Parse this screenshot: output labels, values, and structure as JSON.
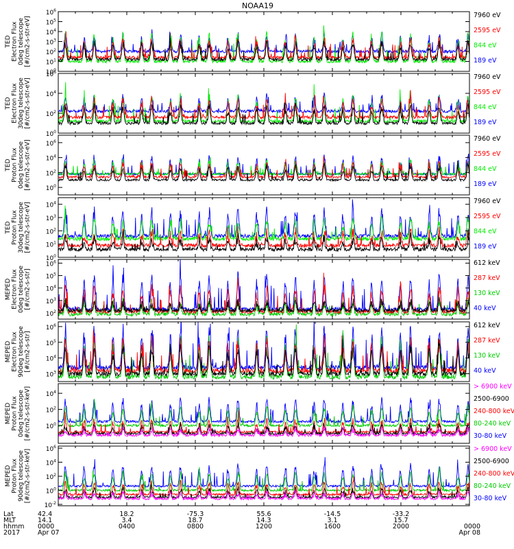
{
  "chart_data": {
    "type": "line",
    "title": "NOAA19",
    "x_tick_labels": {
      "row_labels": [
        "Lat",
        "MLT",
        "hhmm",
        "2017"
      ],
      "ticks": [
        {
          "t": 0,
          "lat": "42.4",
          "mlt": "14.1",
          "hhmm": "0000",
          "date": "Apr 07"
        },
        {
          "t": 4,
          "lat": "18.2",
          "mlt": "3.4",
          "hhmm": "0400",
          "date": ""
        },
        {
          "t": 8,
          "lat": "-75.3",
          "mlt": "18.7",
          "hhmm": "0800",
          "date": ""
        },
        {
          "t": 12,
          "lat": "55.6",
          "mlt": "14.3",
          "hhmm": "1200",
          "date": ""
        },
        {
          "t": 16,
          "lat": "-14.5",
          "mlt": "3.1",
          "hhmm": "1600",
          "date": ""
        },
        {
          "t": 20,
          "lat": "-33.2",
          "mlt": "15.7",
          "hhmm": "2000",
          "date": ""
        },
        {
          "t": 24,
          "lat": "",
          "mlt": "",
          "hhmm": "0000",
          "date": "Apr 08"
        }
      ]
    },
    "xlim": [
      0,
      24
    ],
    "panels": [
      {
        "ylabel": [
          "TED",
          "Electron Flux",
          "0deg telescope",
          "[#/cm2-s-str-eV]"
        ],
        "ylim_exp": [
          0,
          6
        ],
        "ytick_exps": [
          0,
          1,
          2,
          3,
          4,
          5,
          6
        ],
        "series": [
          {
            "name": "7960 eV",
            "color": "#000000",
            "base": 1.2,
            "amp": 1.6
          },
          {
            "name": "2595 eV",
            "color": "#ff0000",
            "base": 1.4,
            "amp": 1.8
          },
          {
            "name": "844 eV",
            "color": "#00ee00",
            "base": 1.0,
            "amp": 2.6
          },
          {
            "name": "189 eV",
            "color": "#0000ff",
            "base": 2.0,
            "amp": 1.6
          }
        ]
      },
      {
        "ylabel": [
          "TED",
          "Electron Flux",
          "30deg telescope",
          "[#/cm2-s-str-eV]"
        ],
        "ylim_exp": [
          0,
          6
        ],
        "ytick_exps": [
          0,
          2,
          4,
          6
        ],
        "series": [
          {
            "name": "7960 eV",
            "color": "#000000",
            "base": 1.0,
            "amp": 1.6
          },
          {
            "name": "2595 eV",
            "color": "#ff0000",
            "base": 1.6,
            "amp": 1.6
          },
          {
            "name": "844 eV",
            "color": "#00ee00",
            "base": 1.2,
            "amp": 2.4
          },
          {
            "name": "189 eV",
            "color": "#0000ff",
            "base": 2.2,
            "amp": 1.4
          }
        ]
      },
      {
        "ylabel": [
          "TED",
          "Proton Flux",
          "0deg telescope",
          "[#/cm2-s-str-eV]"
        ],
        "ylim_exp": [
          -1,
          7
        ],
        "ytick_exps": [
          0,
          2,
          4,
          6
        ],
        "series": [
          {
            "name": "7960 eV",
            "color": "#000000",
            "base": 1.0,
            "amp": 1.8
          },
          {
            "name": "2595 eV",
            "color": "#ff0000",
            "base": 1.4,
            "amp": 1.8
          },
          {
            "name": "844 eV",
            "color": "#00ee00",
            "base": 1.8,
            "amp": 1.6
          },
          {
            "name": "189 eV",
            "color": "#0000ff",
            "base": 1.8,
            "amp": 2.2
          }
        ]
      },
      {
        "ylabel": [
          "TED",
          "Proton Flux",
          "30deg telescope",
          "[#/cm2-s-str-eV]"
        ],
        "ylim_exp": [
          0,
          4.5
        ],
        "ytick_exps": [
          0,
          1,
          2,
          3,
          4
        ],
        "series": [
          {
            "name": "7960 eV",
            "color": "#000000",
            "base": 0.6,
            "amp": 0.8
          },
          {
            "name": "2595 eV",
            "color": "#ff0000",
            "base": 0.9,
            "amp": 1.0
          },
          {
            "name": "844 eV",
            "color": "#00ee00",
            "base": 1.4,
            "amp": 1.4
          },
          {
            "name": "189 eV",
            "color": "#0000ff",
            "base": 1.6,
            "amp": 1.8
          }
        ]
      },
      {
        "ylabel": [
          "MEPED",
          "Electron Flux",
          "0deg telescope",
          "[#/cm2-s-str]"
        ],
        "ylim_exp": [
          1.5,
          6.3
        ],
        "ytick_exps": [
          2,
          3,
          4,
          5,
          6
        ],
        "series": [
          {
            "name": "612 keV",
            "color": "#000000",
            "base": 2.2,
            "amp": 0.6
          },
          {
            "name": "287 keV",
            "color": "#ff0000",
            "base": 2.1,
            "amp": 1.8
          },
          {
            "name": "130 keV",
            "color": "#00cc00",
            "base": 1.9,
            "amp": 1.0
          },
          {
            "name": "40 keV",
            "color": "#0000ff",
            "base": 2.3,
            "amp": 2.6
          }
        ]
      },
      {
        "ylabel": [
          "MEPED",
          "Electron Flux",
          "90deg telescope",
          "[#/cm2-s-str]"
        ],
        "ylim_exp": [
          2.5,
          6.3
        ],
        "ytick_exps": [
          3,
          4,
          5,
          6
        ],
        "series": [
          {
            "name": "612 keV",
            "color": "#000000",
            "base": 3.0,
            "amp": 1.6
          },
          {
            "name": "287 keV",
            "color": "#ff0000",
            "base": 3.2,
            "amp": 1.8
          },
          {
            "name": "130 keV",
            "color": "#00cc00",
            "base": 2.8,
            "amp": 2.2
          },
          {
            "name": "40 keV",
            "color": "#0000ff",
            "base": 3.4,
            "amp": 2.4
          }
        ]
      },
      {
        "ylabel": [
          "MEPED",
          "Proton Flux",
          "0deg telescope",
          "[#/cm2-s-str-keV]"
        ],
        "ylim_exp": [
          -2.2,
          5.2
        ],
        "ytick_exps": [
          0,
          2,
          4
        ],
        "series": [
          {
            "name": "> 6900 keV",
            "color": "#ff00ff",
            "base": -1.2,
            "amp": 0.8
          },
          {
            "name": "2500-6900",
            "color": "#000000",
            "base": -1.0,
            "amp": 1.0
          },
          {
            "name": "240-800 keV",
            "color": "#ff0000",
            "base": -0.8,
            "amp": 1.4
          },
          {
            "name": "80-240 keV",
            "color": "#00cc00",
            "base": 0.0,
            "amp": 2.2
          },
          {
            "name": "30-80 keV",
            "color": "#0000ff",
            "base": 0.5,
            "amp": 2.6
          }
        ]
      },
      {
        "ylabel": [
          "MEPED",
          "Proton Flux",
          "90deg telescope",
          "[#/cm2-s-str-keV]"
        ],
        "ylim_exp": [
          -2.2,
          6.3
        ],
        "ytick_exps": [
          -2,
          0,
          2,
          4,
          6
        ],
        "series": [
          {
            "name": "> 6900 keV",
            "color": "#ff00ff",
            "base": -1.2,
            "amp": 0.8
          },
          {
            "name": "2500-6900",
            "color": "#000000",
            "base": -1.0,
            "amp": 1.2
          },
          {
            "name": "240-800 keV",
            "color": "#ff0000",
            "base": -0.6,
            "amp": 1.6
          },
          {
            "name": "80-240 keV",
            "color": "#00cc00",
            "base": 0.0,
            "amp": 2.4
          },
          {
            "name": "30-80 keV",
            "color": "#0000ff",
            "base": 0.6,
            "amp": 2.8
          }
        ]
      }
    ]
  }
}
